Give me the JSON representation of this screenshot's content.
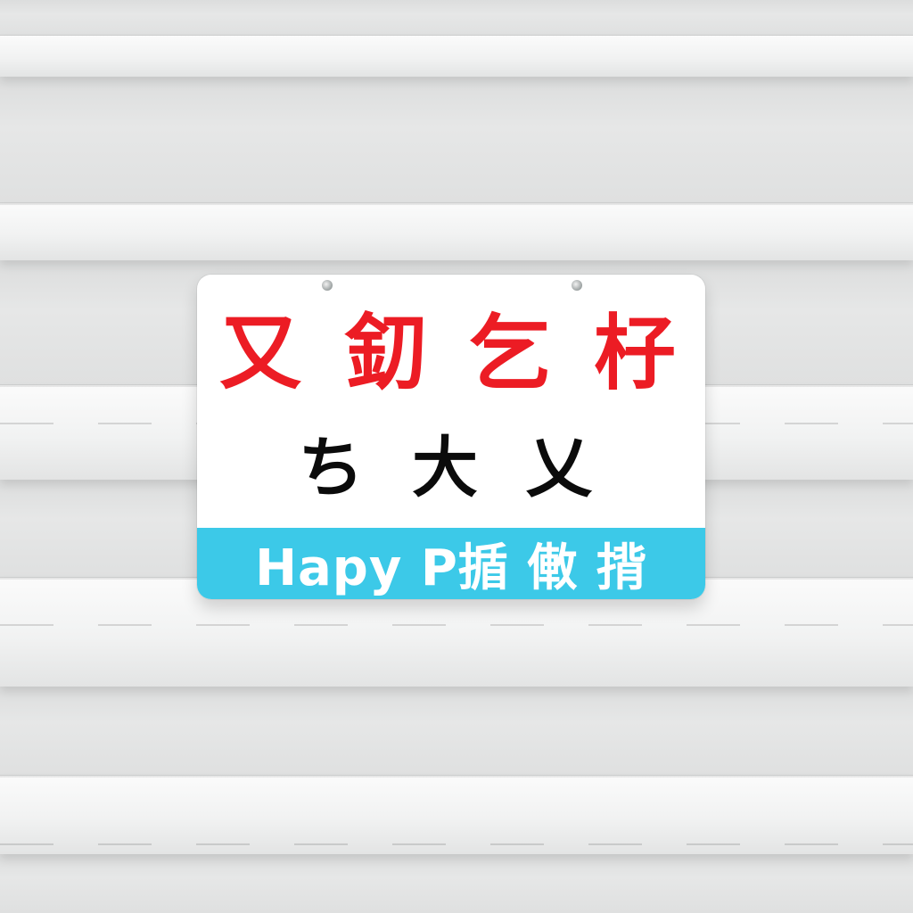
{
  "sign": {
    "line1": "又 釖 乞 杍",
    "line2": "ち 大 乂",
    "band_text": "Hapy P揗 僌 揹"
  },
  "colors": {
    "line1_text": "#ec1c24",
    "line2_text": "#0b0b0b",
    "band_background": "#3cc9e8",
    "band_text": "#ffffff",
    "sign_background": "#ffffff",
    "shelf": "#f1f2f2",
    "wall": "#e0e1e1"
  }
}
